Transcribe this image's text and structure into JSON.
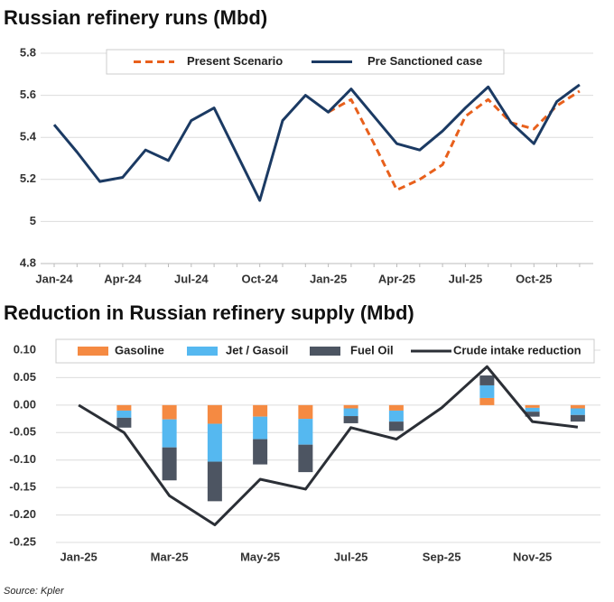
{
  "chart_data": [
    {
      "type": "line",
      "title": "Russian refinery runs (Mbd)",
      "categories": [
        "Jan-24",
        null,
        null,
        "Apr-24",
        null,
        null,
        "Jul-24",
        null,
        null,
        "Oct-24",
        null,
        null,
        "Jan-25",
        null,
        null,
        "Apr-25",
        null,
        null,
        "Jul-25",
        null,
        null,
        "Oct-25",
        null,
        null
      ],
      "series": [
        {
          "name": "Present Scenario",
          "color": "#e8601c",
          "dashed": true,
          "values": [
            null,
            null,
            null,
            null,
            null,
            null,
            null,
            null,
            null,
            null,
            null,
            null,
            5.52,
            5.58,
            5.37,
            5.15,
            5.2,
            5.27,
            5.5,
            5.58,
            5.47,
            5.44,
            5.55,
            5.62
          ]
        },
        {
          "name": "Pre Sanctioned case",
          "color": "#1b3a63",
          "values": [
            5.46,
            5.33,
            5.19,
            5.21,
            5.34,
            5.29,
            5.48,
            5.54,
            5.32,
            5.1,
            5.48,
            5.6,
            5.52,
            5.63,
            5.5,
            5.37,
            5.34,
            5.43,
            5.54,
            5.64,
            5.47,
            5.37,
            5.57,
            5.65
          ]
        }
      ],
      "ylim": [
        4.8,
        5.8
      ],
      "yticks": [
        4.8,
        5,
        5.2,
        5.4,
        5.6,
        5.8
      ],
      "grid": true
    },
    {
      "type": "bar",
      "title": "Reduction in Russian refinery supply (Mbd)",
      "stacked": true,
      "categories": [
        "Jan-25",
        null,
        "Mar-25",
        null,
        "May-25",
        null,
        "Jul-25",
        null,
        "Sep-25",
        null,
        "Nov-25",
        null
      ],
      "series": [
        {
          "name": "Gasoline",
          "color": "#f58a42",
          "values": [
            0,
            -0.01,
            -0.026,
            -0.034,
            -0.021,
            -0.025,
            -0.006,
            -0.01,
            0,
            0.013,
            -0.005,
            -0.006
          ]
        },
        {
          "name": "Jet / Gasoil",
          "color": "#55b8f0",
          "values": [
            0,
            -0.013,
            -0.051,
            -0.069,
            -0.041,
            -0.047,
            -0.014,
            -0.02,
            0,
            0.023,
            -0.007,
            -0.012
          ]
        },
        {
          "name": "Fuel Oil",
          "color": "#4d5562",
          "values": [
            0,
            -0.018,
            -0.06,
            -0.072,
            -0.046,
            -0.05,
            -0.013,
            -0.017,
            0,
            0.018,
            -0.009,
            -0.012
          ]
        },
        {
          "name": "Crude intake reduction",
          "color": "#2b2f36",
          "type": "line",
          "values": [
            0,
            -0.05,
            -0.165,
            -0.218,
            -0.135,
            -0.153,
            -0.041,
            -0.062,
            -0.005,
            0.07,
            -0.03,
            -0.04
          ]
        }
      ],
      "ylim": [
        -0.25,
        0.1
      ],
      "yticks": [
        {
          "value": 0.1,
          "label": "0.10"
        },
        0.05,
        {
          "value": 0,
          "label": "0.00"
        },
        -0.05,
        {
          "value": -0.1,
          "label": "-0.10"
        },
        -0.15,
        {
          "value": -0.2,
          "label": "-0.20"
        },
        -0.25
      ],
      "grid": true
    }
  ],
  "source": "Source: Kpler"
}
